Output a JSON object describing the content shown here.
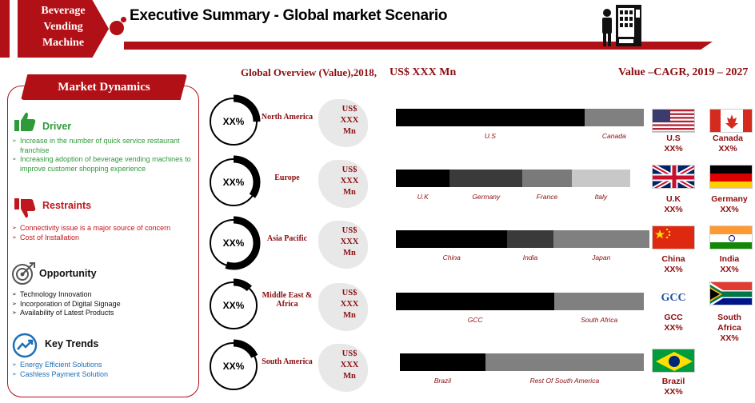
{
  "brand": {
    "lines": [
      "Beverage",
      "Vending",
      "Machine"
    ]
  },
  "title": "Executive Summary -  Global market Scenario",
  "market_dynamics": {
    "title": "Market Dynamics",
    "driver": {
      "heading": "Driver",
      "items": [
        "Increase in the number of quick service restaurant franchise",
        "Increasing adoption of beverage vending machines to improve customer shopping experience"
      ]
    },
    "restraints": {
      "heading": "Restraints",
      "items": [
        "Connectivity issue is a major source of concern",
        "Cost of Installation"
      ]
    },
    "opportunity": {
      "heading": "Opportunity",
      "items": [
        "Technology Innovation",
        "Incorporation of Digital Signage",
        "Availability of Latest Products"
      ]
    },
    "trends": {
      "heading": "Key Trends",
      "items": [
        "Energy Efficient Solutions",
        "Cashless Payment Solution"
      ]
    }
  },
  "headers": {
    "overview": "Global Overview (Value),2018,",
    "value": "US$ XXX Mn",
    "cagr": "Value –CAGR, 2019 – 2027"
  },
  "regions": [
    {
      "name": "North America",
      "ring_label": "XX%",
      "share": 0.25,
      "usd": [
        "US$",
        "XXX",
        "Mn"
      ],
      "segments": [
        {
          "label": "U.S",
          "fraction": 0.76,
          "color": "#000000"
        },
        {
          "label": "Canada",
          "fraction": 0.24,
          "color": "#808080"
        }
      ]
    },
    {
      "name": "Europe",
      "ring_label": "XX%",
      "share": 0.35,
      "usd": [
        "US$",
        "XXX",
        "Mn"
      ],
      "segments": [
        {
          "label": "U.K",
          "fraction": 0.23,
          "color": "#000000"
        },
        {
          "label": "Germany",
          "fraction": 0.31,
          "color": "#3a3a3a"
        },
        {
          "label": "France",
          "fraction": 0.21,
          "color": "#7a7a7a"
        },
        {
          "label": "Italy",
          "fraction": 0.25,
          "color": "#c8c8c8"
        }
      ]
    },
    {
      "name": "Asia Pacific",
      "ring_label": "XX%",
      "share": 0.55,
      "usd": [
        "US$",
        "XXX",
        "Mn"
      ],
      "segments": [
        {
          "label": "China",
          "fraction": 0.44,
          "color": "#000000"
        },
        {
          "label": "India",
          "fraction": 0.18,
          "color": "#3a3a3a"
        },
        {
          "label": "Japan",
          "fraction": 0.38,
          "color": "#808080"
        }
      ]
    },
    {
      "name": "Middle East & Africa",
      "ring_label": "XX%",
      "share": 0.12,
      "usd": [
        "US$",
        "XXX",
        "Mn"
      ],
      "segments": [
        {
          "label": "GCC",
          "fraction": 0.64,
          "color": "#000000"
        },
        {
          "label": "South Africa",
          "fraction": 0.36,
          "color": "#808080"
        }
      ]
    },
    {
      "name": "South America",
      "ring_label": "XX%",
      "share": 0.18,
      "usd": [
        "US$",
        "XXX",
        "Mn"
      ],
      "segments": [
        {
          "label": "Brazil",
          "fraction": 0.35,
          "color": "#000000"
        },
        {
          "label": "Rest Of South America",
          "fraction": 0.65,
          "color": "#808080"
        }
      ]
    }
  ],
  "flags": [
    {
      "country": "U.S",
      "value": "XX%"
    },
    {
      "country": "Canada",
      "value": "XX%"
    },
    {
      "country": "U.K",
      "value": "XX%"
    },
    {
      "country": "Germany",
      "value": "XX%"
    },
    {
      "country": "China",
      "value": "XX%"
    },
    {
      "country": "India",
      "value": "XX%"
    },
    {
      "country": "GCC",
      "value": "XX%",
      "flag_text": "GCC"
    },
    {
      "country": "South Africa",
      "value": "XX%"
    },
    {
      "country": "Brazil",
      "value": "XX%"
    }
  ]
}
